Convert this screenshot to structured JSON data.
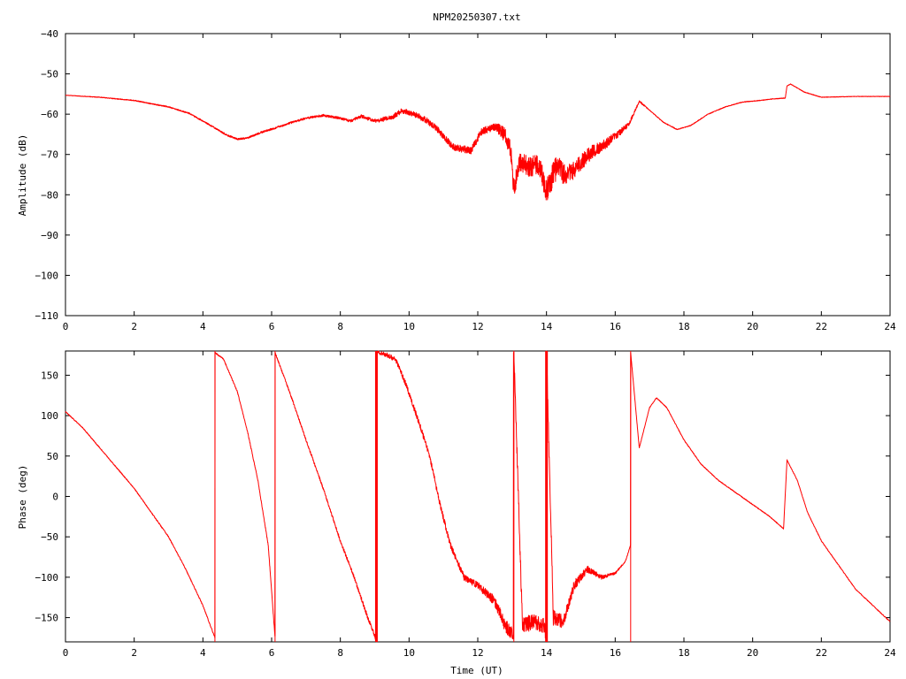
{
  "chart_data": [
    {
      "type": "line",
      "title": "NPM20250307.txt",
      "xlabel": "",
      "ylabel": "Amplitude (dB)",
      "xlim": [
        0,
        24
      ],
      "ylim": [
        -110,
        -40
      ],
      "x_ticks": [
        "0",
        "2",
        "4",
        "6",
        "8",
        "10",
        "12",
        "14",
        "16",
        "18",
        "20",
        "22",
        "24"
      ],
      "y_ticks": [
        "-40",
        "-50",
        "-60",
        "-70",
        "-80",
        "-90",
        "-100",
        "-110"
      ],
      "grid": false,
      "legend": "none",
      "series": [
        {
          "color": "#ff0000",
          "noise": [
            [
              0,
              0.05
            ],
            [
              8,
              0.3
            ],
            [
              9.5,
              0.6
            ],
            [
              11,
              0.8
            ],
            [
              12.5,
              1.0
            ],
            [
              13,
              2.5
            ],
            [
              13.5,
              2.5
            ],
            [
              14.2,
              3.2
            ],
            [
              15,
              2.0
            ],
            [
              15.8,
              1.2
            ],
            [
              16.5,
              0.4
            ],
            [
              17,
              0.1
            ],
            [
              24,
              0.05
            ]
          ],
          "x": [
            0,
            1,
            2,
            3,
            3.6,
            4.2,
            4.7,
            5.0,
            5.3,
            5.7,
            6.0,
            6.5,
            7.0,
            7.5,
            8.0,
            8.3,
            8.6,
            9.0,
            9.5,
            9.8,
            10.2,
            10.5,
            10.8,
            11.0,
            11.3,
            11.8,
            12.1,
            12.5,
            12.8,
            12.95,
            13.05,
            13.2,
            13.5,
            13.8,
            14.0,
            14.3,
            14.6,
            15.0,
            15.3,
            15.7,
            16.0,
            16.4,
            16.7,
            17.0,
            17.4,
            17.8,
            18.2,
            18.7,
            19.2,
            19.7,
            20.2,
            20.6,
            20.95,
            21.0,
            21.1,
            21.5,
            22.0,
            23.0,
            24.0
          ],
          "y": [
            -55.3,
            -55.8,
            -56.6,
            -58.2,
            -59.8,
            -62.7,
            -65.2,
            -66.2,
            -65.9,
            -64.5,
            -63.7,
            -62.3,
            -61.0,
            -60.3,
            -61.0,
            -61.7,
            -60.5,
            -61.7,
            -60.8,
            -59.1,
            -60.2,
            -61.5,
            -63.5,
            -65.5,
            -68.2,
            -69.0,
            -64.5,
            -63.0,
            -65.2,
            -68.5,
            -79.0,
            -72.0,
            -73.0,
            -72.5,
            -79.0,
            -73.0,
            -75.5,
            -72.0,
            -69.5,
            -67.5,
            -65.5,
            -62.5,
            -56.8,
            -59.0,
            -62.0,
            -63.8,
            -62.8,
            -60.0,
            -58.2,
            -57.0,
            -56.6,
            -56.2,
            -56.0,
            -53.0,
            -52.5,
            -54.5,
            -55.8,
            -55.6,
            -55.6
          ]
        }
      ]
    },
    {
      "type": "line",
      "title": "",
      "xlabel": "Time (UT)",
      "ylabel": "Phase (deg)",
      "xlim": [
        0,
        24
      ],
      "ylim": [
        -180,
        180
      ],
      "x_ticks": [
        "0",
        "2",
        "4",
        "6",
        "8",
        "10",
        "12",
        "14",
        "16",
        "18",
        "20",
        "22",
        "24"
      ],
      "y_ticks": [
        "150",
        "100",
        "50",
        "0",
        "-50",
        "-100",
        "-150"
      ],
      "y_tick_values": [
        150,
        100,
        50,
        0,
        -50,
        -100,
        -150
      ],
      "grid": false,
      "legend": "none",
      "wraps_at": [
        4.35,
        6.1,
        9.05,
        13.05,
        14.0,
        16.45
      ],
      "series": [
        {
          "color": "#ff0000",
          "noise": [
            [
              0,
              0.5
            ],
            [
              5,
              0.8
            ],
            [
              7.5,
              1.5
            ],
            [
              9.5,
              3
            ],
            [
              11,
              3.5
            ],
            [
              12,
              4
            ],
            [
              12.8,
              8
            ],
            [
              13.5,
              10
            ],
            [
              14.2,
              10
            ],
            [
              15,
              5
            ],
            [
              15.8,
              2
            ],
            [
              16.4,
              0.5
            ],
            [
              24,
              0.5
            ]
          ],
          "x": [
            0,
            0.5,
            1.0,
            1.5,
            2.0,
            2.5,
            3.0,
            3.5,
            4.0,
            4.35,
            4.3501,
            4.6,
            5.0,
            5.3,
            5.6,
            5.9,
            6.1,
            6.1001,
            6.3,
            6.6,
            7.0,
            7.5,
            8.0,
            8.4,
            8.8,
            9.05,
            9.0501,
            9.3,
            9.6,
            9.9,
            10.3,
            10.6,
            10.9,
            11.2,
            11.6,
            12.0,
            12.5,
            12.8,
            13.0,
            13.05,
            13.0501,
            13.3,
            13.6,
            13.95,
            14.0,
            14.0001,
            14.2,
            14.5,
            14.8,
            15.2,
            15.6,
            16.0,
            16.3,
            16.45,
            16.4501,
            16.7,
            17.0,
            17.2,
            17.5,
            18.0,
            18.5,
            19.0,
            19.5,
            20.0,
            20.5,
            20.9,
            21.0,
            21.3,
            21.6,
            22.0,
            22.5,
            23.0,
            23.5,
            24.0
          ],
          "y": [
            105,
            85,
            60,
            35,
            10,
            -20,
            -50,
            -90,
            -135,
            -175,
            178,
            170,
            130,
            80,
            20,
            -60,
            -175,
            178,
            155,
            120,
            70,
            10,
            -55,
            -100,
            -150,
            -178,
            178,
            176,
            170,
            140,
            90,
            50,
            -10,
            -60,
            -100,
            -110,
            -130,
            -160,
            -170,
            -175,
            178,
            -160,
            -155,
            -160,
            -178,
            178,
            -150,
            -155,
            -110,
            -90,
            -100,
            -95,
            -80,
            -60,
            178,
            60,
            110,
            122,
            110,
            70,
            40,
            20,
            5,
            -10,
            -25,
            -40,
            45,
            20,
            -20,
            -55,
            -85,
            -115,
            -135,
            -155
          ]
        }
      ]
    }
  ]
}
